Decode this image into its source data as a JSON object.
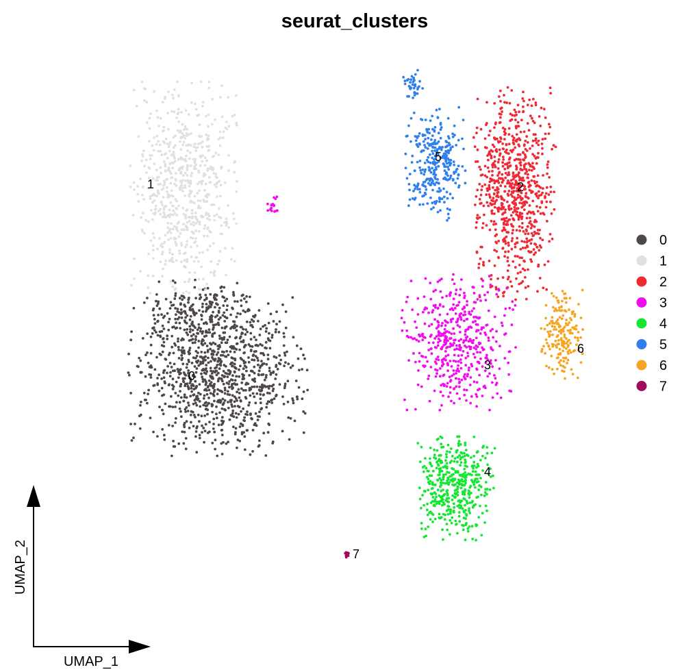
{
  "chart_data": {
    "type": "scatter",
    "title": "seurat_clusters",
    "xlabel": "UMAP_1",
    "ylabel": "UMAP_2",
    "axes": "arrows only, no ticks",
    "grid": false,
    "legend_position": "right",
    "series": [
      {
        "name": "0",
        "color": "#4D4747",
        "label": "0",
        "label_pos": {
          "x": -7.0,
          "y": -2.5
        }
      },
      {
        "name": "1",
        "color": "#E0E0E0",
        "label": "1",
        "label_pos": {
          "x": -8.5,
          "y": 4.5
        }
      },
      {
        "name": "2",
        "color": "#EE2A35",
        "label": "2",
        "label_pos": {
          "x": 5.0,
          "y": 4.4
        }
      },
      {
        "name": "3",
        "color": "#F20CF0",
        "label": "3",
        "label_pos": {
          "x": 3.8,
          "y": -2.1
        }
      },
      {
        "name": "4",
        "color": "#14E632",
        "label": "4",
        "label_pos": {
          "x": 3.8,
          "y": -6.0
        }
      },
      {
        "name": "5",
        "color": "#2F80ED",
        "label": "5",
        "label_pos": {
          "x": 2.0,
          "y": 5.5
        }
      },
      {
        "name": "6",
        "color": "#F5A523",
        "label": "6",
        "label_pos": {
          "x": 7.2,
          "y": -1.5
        }
      },
      {
        "name": "7",
        "color": "#A10B5C",
        "label": "7",
        "label_pos": {
          "x": -1.0,
          "y": -9.0
        }
      }
    ]
  }
}
